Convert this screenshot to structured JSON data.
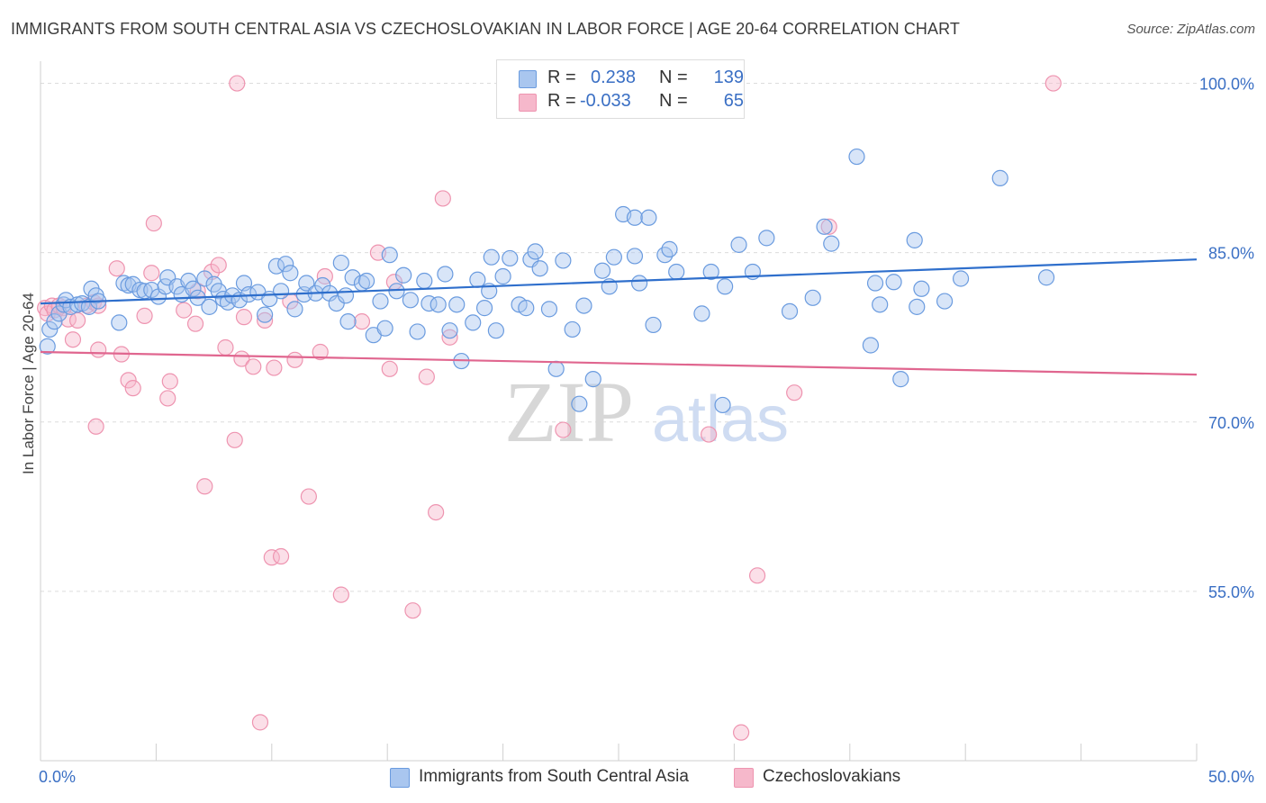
{
  "header": {
    "title": "IMMIGRANTS FROM SOUTH CENTRAL ASIA VS CZECHOSLOVAKIAN IN LABOR FORCE | AGE 20-64 CORRELATION CHART",
    "source": "Source: ZipAtlas.com"
  },
  "watermark": {
    "zip": "ZIP",
    "atlas": "atlas"
  },
  "stats_legend": [
    {
      "r_label": "R =",
      "r_value": "0.238",
      "n_label": "N =",
      "n_value": "139",
      "color": "#a9c6ef"
    },
    {
      "r_label": "R =",
      "r_value": "-0.033",
      "n_label": "N =",
      "n_value": "65",
      "color": "#f6b8cb"
    }
  ],
  "bottom_legend": [
    {
      "label": "Immigrants from South Central Asia",
      "color": "#a9c6ef"
    },
    {
      "label": "Czechoslovakians",
      "color": "#f6b8cb"
    }
  ],
  "chart_data": {
    "type": "scatter",
    "ylabel": "In Labor Force | Age 20-64",
    "xlabel": "",
    "xlim": [
      0,
      50
    ],
    "ylim": [
      40,
      101
    ],
    "x_tick_labels": [
      "0.0%",
      "50.0%"
    ],
    "y_ticks": [
      55,
      70,
      85,
      100
    ],
    "y_tick_labels": [
      "55.0%",
      "70.0%",
      "85.0%",
      "100.0%"
    ],
    "grid": true,
    "series": [
      {
        "name": "Immigrants from South Central Asia",
        "color": "#6a9bdf",
        "fill": "#a9c6ef",
        "trend_line": {
          "x": [
            0,
            50
          ],
          "y": [
            80.5,
            84.4
          ],
          "color": "#2f6fcc"
        },
        "points": [
          [
            0.3,
            76.7
          ],
          [
            0.4,
            78.2
          ],
          [
            0.6,
            78.9
          ],
          [
            0.8,
            79.6
          ],
          [
            1.0,
            80.4
          ],
          [
            1.1,
            80.8
          ],
          [
            1.3,
            80.2
          ],
          [
            1.6,
            80.4
          ],
          [
            1.8,
            80.5
          ],
          [
            2.1,
            80.2
          ],
          [
            2.2,
            81.8
          ],
          [
            2.4,
            81.2
          ],
          [
            2.5,
            80.7
          ],
          [
            3.4,
            78.8
          ],
          [
            3.6,
            82.3
          ],
          [
            3.8,
            82.1
          ],
          [
            4.0,
            82.2
          ],
          [
            4.3,
            81.7
          ],
          [
            4.5,
            81.6
          ],
          [
            4.8,
            81.7
          ],
          [
            5.1,
            81.1
          ],
          [
            5.4,
            82.0
          ],
          [
            5.5,
            82.8
          ],
          [
            5.9,
            82.0
          ],
          [
            6.1,
            81.3
          ],
          [
            6.4,
            82.5
          ],
          [
            6.6,
            81.8
          ],
          [
            6.8,
            81.0
          ],
          [
            7.1,
            82.7
          ],
          [
            7.3,
            80.2
          ],
          [
            7.5,
            82.2
          ],
          [
            7.7,
            81.6
          ],
          [
            7.9,
            80.9
          ],
          [
            8.1,
            80.6
          ],
          [
            8.3,
            81.2
          ],
          [
            8.6,
            80.8
          ],
          [
            8.8,
            82.3
          ],
          [
            9.0,
            81.3
          ],
          [
            9.4,
            81.5
          ],
          [
            9.7,
            79.5
          ],
          [
            9.9,
            80.9
          ],
          [
            10.2,
            83.8
          ],
          [
            10.4,
            81.6
          ],
          [
            10.6,
            84.0
          ],
          [
            10.8,
            83.2
          ],
          [
            11.0,
            80.0
          ],
          [
            11.4,
            81.3
          ],
          [
            11.5,
            82.3
          ],
          [
            11.9,
            81.4
          ],
          [
            12.2,
            82.1
          ],
          [
            12.5,
            81.4
          ],
          [
            12.8,
            80.5
          ],
          [
            13.0,
            84.1
          ],
          [
            13.2,
            81.2
          ],
          [
            13.5,
            82.8
          ],
          [
            13.3,
            78.9
          ],
          [
            13.9,
            82.3
          ],
          [
            14.1,
            82.5
          ],
          [
            14.4,
            77.7
          ],
          [
            14.7,
            80.7
          ],
          [
            14.9,
            78.3
          ],
          [
            15.1,
            84.8
          ],
          [
            15.4,
            81.6
          ],
          [
            15.7,
            83.0
          ],
          [
            16.0,
            80.8
          ],
          [
            16.3,
            78.0
          ],
          [
            16.6,
            82.5
          ],
          [
            16.8,
            80.5
          ],
          [
            17.2,
            80.4
          ],
          [
            17.5,
            83.1
          ],
          [
            17.7,
            78.1
          ],
          [
            18.0,
            80.4
          ],
          [
            18.2,
            75.4
          ],
          [
            18.7,
            78.8
          ],
          [
            18.9,
            82.6
          ],
          [
            19.2,
            80.1
          ],
          [
            19.4,
            81.6
          ],
          [
            19.7,
            78.1
          ],
          [
            19.5,
            84.6
          ],
          [
            20.0,
            82.9
          ],
          [
            20.3,
            84.5
          ],
          [
            20.7,
            80.4
          ],
          [
            21.0,
            80.1
          ],
          [
            21.2,
            84.4
          ],
          [
            21.4,
            85.1
          ],
          [
            21.6,
            83.6
          ],
          [
            22.0,
            80.0
          ],
          [
            22.3,
            74.7
          ],
          [
            22.6,
            84.3
          ],
          [
            23.0,
            78.2
          ],
          [
            23.3,
            71.6
          ],
          [
            23.5,
            80.3
          ],
          [
            23.9,
            73.8
          ],
          [
            24.3,
            83.4
          ],
          [
            24.6,
            82.0
          ],
          [
            24.8,
            84.6
          ],
          [
            25.2,
            88.4
          ],
          [
            25.7,
            84.7
          ],
          [
            25.9,
            82.3
          ],
          [
            25.7,
            88.1
          ],
          [
            26.3,
            88.1
          ],
          [
            26.5,
            78.6
          ],
          [
            27.0,
            84.8
          ],
          [
            27.2,
            85.3
          ],
          [
            27.5,
            83.3
          ],
          [
            28.6,
            79.6
          ],
          [
            29.0,
            83.3
          ],
          [
            29.5,
            71.5
          ],
          [
            29.6,
            82.0
          ],
          [
            30.2,
            85.7
          ],
          [
            30.8,
            83.3
          ],
          [
            31.4,
            86.3
          ],
          [
            32.4,
            79.8
          ],
          [
            33.4,
            81.0
          ],
          [
            33.9,
            87.3
          ],
          [
            34.2,
            85.8
          ],
          [
            35.3,
            93.5
          ],
          [
            35.9,
            76.8
          ],
          [
            36.1,
            82.3
          ],
          [
            36.3,
            80.4
          ],
          [
            36.9,
            82.4
          ],
          [
            37.2,
            73.8
          ],
          [
            37.8,
            86.1
          ],
          [
            37.9,
            80.2
          ],
          [
            38.1,
            81.8
          ],
          [
            39.1,
            80.7
          ],
          [
            39.8,
            82.7
          ],
          [
            41.5,
            91.6
          ],
          [
            43.5,
            82.8
          ],
          [
            29.8,
            100.0
          ]
        ]
      },
      {
        "name": "Czechoslovakians",
        "color": "#ee94b0",
        "fill": "#f6b8cb",
        "trend_line": {
          "x": [
            0,
            50
          ],
          "y": [
            76.2,
            74.2
          ],
          "color": "#e0668f"
        },
        "points": [
          [
            0.2,
            80.1
          ],
          [
            0.3,
            79.6
          ],
          [
            0.5,
            80.3
          ],
          [
            0.6,
            79.9
          ],
          [
            0.8,
            80.3
          ],
          [
            1.0,
            80.1
          ],
          [
            1.2,
            79.1
          ],
          [
            1.4,
            77.3
          ],
          [
            1.6,
            79.0
          ],
          [
            2.0,
            80.3
          ],
          [
            2.3,
            80.6
          ],
          [
            2.5,
            80.3
          ],
          [
            2.4,
            69.6
          ],
          [
            2.5,
            76.4
          ],
          [
            3.3,
            83.6
          ],
          [
            3.5,
            76.0
          ],
          [
            3.8,
            73.7
          ],
          [
            4.0,
            73.0
          ],
          [
            4.5,
            79.4
          ],
          [
            4.8,
            83.2
          ],
          [
            4.9,
            87.6
          ],
          [
            5.5,
            72.1
          ],
          [
            5.6,
            73.6
          ],
          [
            6.2,
            79.9
          ],
          [
            6.7,
            78.7
          ],
          [
            6.8,
            81.6
          ],
          [
            7.1,
            64.3
          ],
          [
            7.4,
            83.3
          ],
          [
            7.7,
            83.9
          ],
          [
            8.0,
            76.6
          ],
          [
            8.4,
            68.4
          ],
          [
            8.5,
            100.0
          ],
          [
            8.7,
            75.6
          ],
          [
            8.8,
            79.3
          ],
          [
            9.2,
            74.9
          ],
          [
            9.5,
            43.4
          ],
          [
            9.7,
            79.0
          ],
          [
            10.0,
            58.0
          ],
          [
            10.1,
            74.8
          ],
          [
            10.4,
            58.1
          ],
          [
            10.8,
            80.7
          ],
          [
            11.0,
            75.5
          ],
          [
            11.6,
            63.4
          ],
          [
            12.1,
            76.2
          ],
          [
            12.3,
            82.9
          ],
          [
            13.0,
            54.7
          ],
          [
            13.9,
            78.9
          ],
          [
            14.6,
            85.0
          ],
          [
            15.1,
            74.7
          ],
          [
            15.3,
            82.4
          ],
          [
            16.1,
            53.3
          ],
          [
            16.7,
            74.0
          ],
          [
            17.1,
            62.0
          ],
          [
            17.4,
            89.8
          ],
          [
            17.7,
            77.5
          ],
          [
            22.6,
            69.3
          ],
          [
            28.9,
            68.9
          ],
          [
            30.3,
            42.5
          ],
          [
            31.0,
            56.4
          ],
          [
            32.6,
            72.6
          ],
          [
            34.1,
            87.3
          ],
          [
            43.8,
            100.0
          ]
        ]
      }
    ]
  }
}
